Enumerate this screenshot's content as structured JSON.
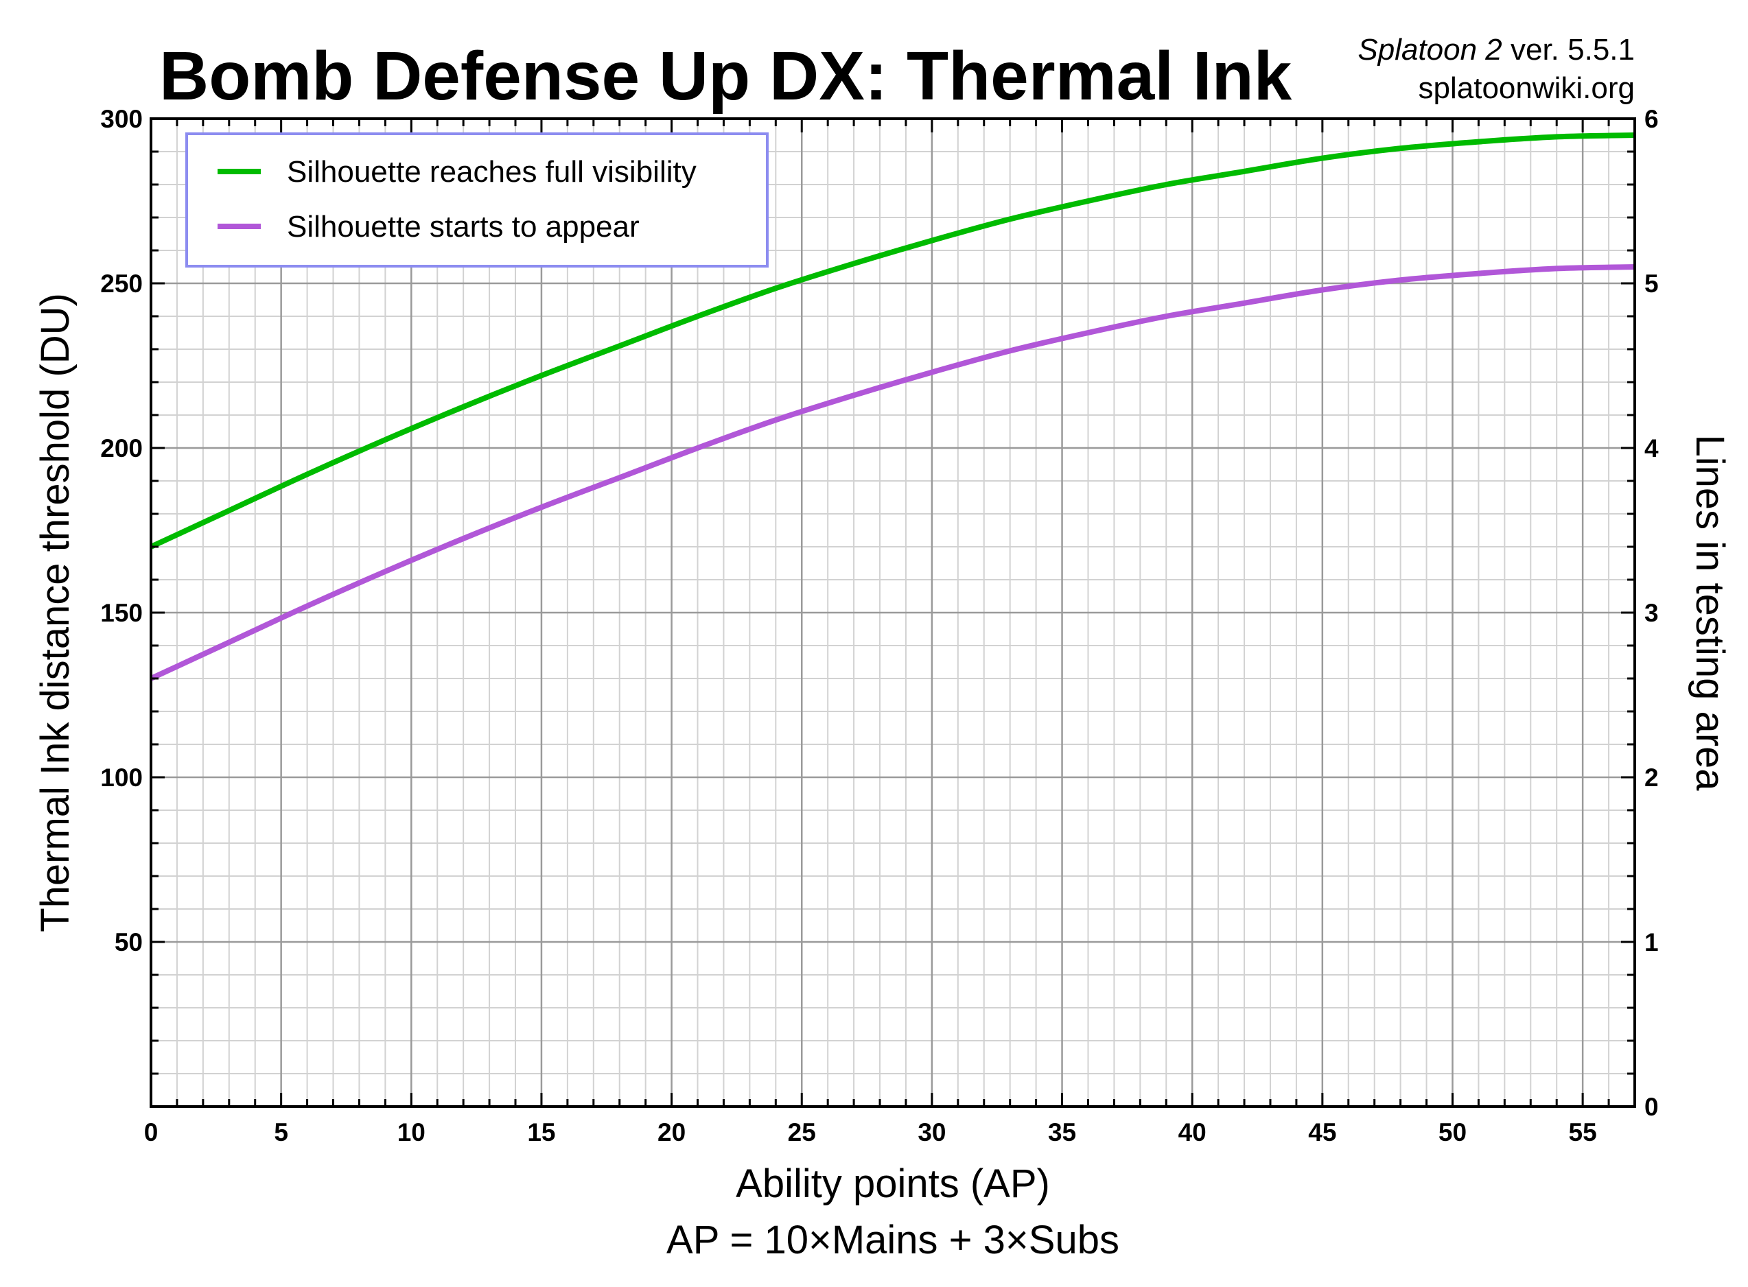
{
  "chart_data": {
    "type": "line",
    "title": "Bomb Defense Up DX: Thermal Ink",
    "credit": {
      "game": "Splatoon 2",
      "version": " ver. 5.5.1",
      "site": "splatoonwiki.org"
    },
    "xlabel": "Ability points (AP)",
    "xlabel_sub": "AP = 10×Mains + 3×Subs",
    "ylabel": "Thermal Ink distance threshold (DU)",
    "y2label": "Lines in testing area",
    "xlim": [
      0,
      57
    ],
    "ylim": [
      0,
      300
    ],
    "y2lim": [
      0,
      6
    ],
    "xticks": [
      0,
      5,
      10,
      15,
      20,
      25,
      30,
      35,
      40,
      45,
      50,
      55
    ],
    "yticks": [
      50,
      100,
      150,
      200,
      250,
      300
    ],
    "y2ticks": [
      0,
      1,
      2,
      3,
      4,
      5,
      6
    ],
    "grid": true,
    "legend_position": "top-left",
    "legend_border_color": "#8c8cf0",
    "series": [
      {
        "name": "Silhouette reaches full visibility",
        "color": "#00bb00",
        "x": [
          0,
          3,
          6,
          9,
          12,
          15,
          18,
          21,
          24,
          27,
          30,
          33,
          36,
          39,
          42,
          45,
          48,
          51,
          54,
          57
        ],
        "y": [
          170,
          181,
          192,
          202.5,
          212.5,
          222,
          231,
          240,
          248.5,
          256,
          263,
          269.5,
          275,
          280,
          284,
          288,
          291,
          293,
          294.5,
          295
        ]
      },
      {
        "name": "Silhouette starts to appear",
        "color": "#b157d8",
        "x": [
          0,
          3,
          6,
          9,
          12,
          15,
          18,
          21,
          24,
          27,
          30,
          33,
          36,
          39,
          42,
          45,
          48,
          51,
          54,
          57
        ],
        "y": [
          130,
          141,
          152,
          162.5,
          172.5,
          182,
          191,
          200,
          208.5,
          216,
          223,
          229.5,
          235,
          240,
          244,
          248,
          251,
          253,
          254.5,
          255
        ]
      }
    ]
  }
}
